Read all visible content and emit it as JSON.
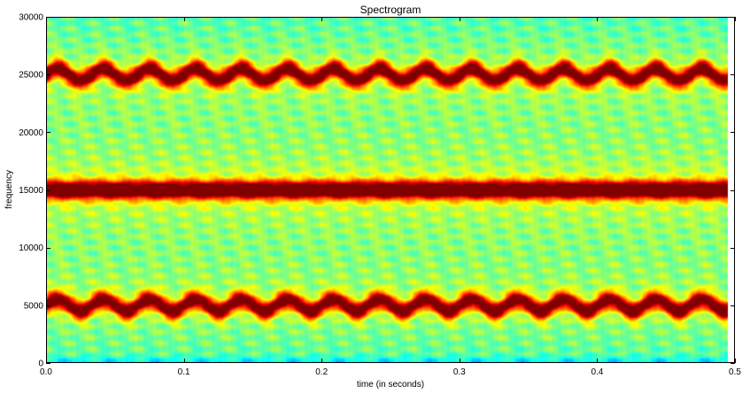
{
  "chart_data": {
    "type": "heatmap",
    "title": "Spectrogram",
    "xlabel": "time (in seconds)",
    "ylabel": "frequency",
    "xlim": [
      0.0,
      0.5
    ],
    "ylim": [
      0,
      30000
    ],
    "x_ticks": [
      0.0,
      0.1,
      0.2,
      0.3,
      0.4,
      0.5
    ],
    "x_tick_labels": [
      "0.0",
      "0.1",
      "0.2",
      "0.3",
      "0.4",
      "0.5"
    ],
    "y_ticks": [
      0,
      5000,
      10000,
      15000,
      20000,
      25000,
      30000
    ],
    "y_tick_labels": [
      "0",
      "5000",
      "10000",
      "15000",
      "20000",
      "25000",
      "30000"
    ],
    "colormap": "jet",
    "time_extent": [
      0.0,
      0.495
    ],
    "bands": [
      {
        "center_frequency": 15000,
        "modulation_depth": 0,
        "modulation_period": 0,
        "relative_intensity": 1.0
      },
      {
        "center_frequency": 25000,
        "modulation_depth": 500,
        "modulation_period": 0.0334,
        "relative_intensity": 0.85
      },
      {
        "center_frequency": 5000,
        "modulation_depth": 500,
        "modulation_period": 0.0334,
        "relative_intensity": 0.85
      }
    ],
    "background_level": 0.35,
    "grid": false,
    "legend": "none"
  }
}
